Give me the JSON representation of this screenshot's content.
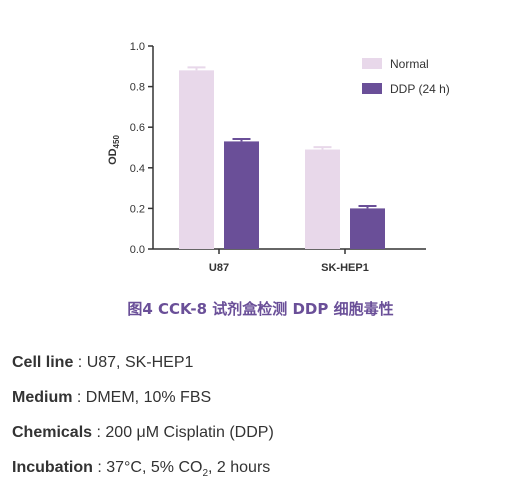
{
  "chart_data": {
    "type": "bar",
    "categories": [
      "U87",
      "SK-HEP1"
    ],
    "series": [
      {
        "name": "Normal",
        "values": [
          0.88,
          0.49
        ],
        "error": [
          0.015,
          0.012
        ],
        "color": "#e8d8ea"
      },
      {
        "name": "DDP (24 h)",
        "values": [
          0.53,
          0.2
        ],
        "error": [
          0.012,
          0.012
        ],
        "color": "#6a4f98"
      }
    ],
    "ylim": [
      0,
      1.0
    ],
    "yticks": [
      "0.0",
      "0.2",
      "0.4",
      "0.6",
      "0.8",
      "1.0"
    ],
    "ylabel": "OD",
    "ylabel_sub": "450",
    "legend_position": "top-right",
    "grid": false
  },
  "caption": "图4   CCK-8 试剂盒检测 DDP 细胞毒性",
  "info": [
    {
      "label": "Cell line",
      "sep": " : ",
      "value": "U87, SK-HEP1"
    },
    {
      "label": "Medium",
      "sep": " : ",
      "value": "DMEM, 10% FBS"
    },
    {
      "label": "Chemicals",
      "sep": " : ",
      "value": "200 μM Cisplatin (DDP)"
    },
    {
      "label": "Incubation",
      "sep": " : ",
      "value_pre": "37°C, 5% CO",
      "value_sub": "2",
      "value_post": ", 2 hours"
    }
  ]
}
